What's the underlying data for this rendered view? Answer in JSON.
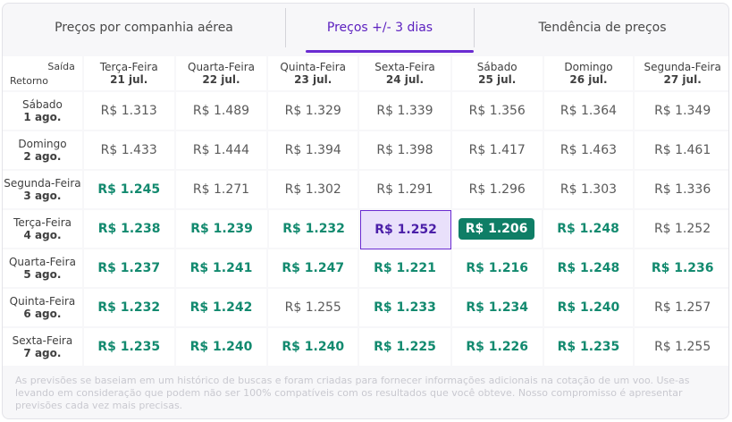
{
  "tabs": [
    {
      "label": "Preços por companhia aérea",
      "active": false
    },
    {
      "label": "Preços +/- 3 dias",
      "active": true
    },
    {
      "label": "Tendência de preços",
      "active": false
    }
  ],
  "corner": {
    "departure_label": "Saída",
    "return_label": "Retorno"
  },
  "columns": [
    {
      "day": "Terça-Feira",
      "date": "21 jul."
    },
    {
      "day": "Quarta-Feira",
      "date": "22 jul."
    },
    {
      "day": "Quinta-Feira",
      "date": "23 jul."
    },
    {
      "day": "Sexta-Feira",
      "date": "24 jul."
    },
    {
      "day": "Sábado",
      "date": "25 jul."
    },
    {
      "day": "Domingo",
      "date": "26 jul."
    },
    {
      "day": "Segunda-Feira",
      "date": "27 jul."
    }
  ],
  "rows": [
    {
      "day": "Sábado",
      "date": "1 ago.",
      "prices": [
        {
          "v": "R$ 1.313",
          "s": "normal"
        },
        {
          "v": "R$ 1.489",
          "s": "normal"
        },
        {
          "v": "R$ 1.329",
          "s": "normal"
        },
        {
          "v": "R$ 1.339",
          "s": "normal"
        },
        {
          "v": "R$ 1.356",
          "s": "normal"
        },
        {
          "v": "R$ 1.364",
          "s": "normal"
        },
        {
          "v": "R$ 1.349",
          "s": "normal"
        }
      ]
    },
    {
      "day": "Domingo",
      "date": "2 ago.",
      "prices": [
        {
          "v": "R$ 1.433",
          "s": "normal"
        },
        {
          "v": "R$ 1.444",
          "s": "normal"
        },
        {
          "v": "R$ 1.394",
          "s": "normal"
        },
        {
          "v": "R$ 1.398",
          "s": "normal"
        },
        {
          "v": "R$ 1.417",
          "s": "normal"
        },
        {
          "v": "R$ 1.463",
          "s": "normal"
        },
        {
          "v": "R$ 1.461",
          "s": "normal"
        }
      ]
    },
    {
      "day": "Segunda-Feira",
      "date": "3 ago.",
      "prices": [
        {
          "v": "R$ 1.245",
          "s": "low"
        },
        {
          "v": "R$ 1.271",
          "s": "normal"
        },
        {
          "v": "R$ 1.302",
          "s": "normal"
        },
        {
          "v": "R$ 1.291",
          "s": "normal"
        },
        {
          "v": "R$ 1.296",
          "s": "normal"
        },
        {
          "v": "R$ 1.303",
          "s": "normal"
        },
        {
          "v": "R$ 1.336",
          "s": "normal"
        }
      ]
    },
    {
      "day": "Terça-Feira",
      "date": "4 ago.",
      "prices": [
        {
          "v": "R$ 1.238",
          "s": "low"
        },
        {
          "v": "R$ 1.239",
          "s": "low"
        },
        {
          "v": "R$ 1.232",
          "s": "low"
        },
        {
          "v": "R$ 1.252",
          "s": "selected"
        },
        {
          "v": "R$ 1.206",
          "s": "cheapest"
        },
        {
          "v": "R$ 1.248",
          "s": "low"
        },
        {
          "v": "R$ 1.252",
          "s": "normal"
        }
      ]
    },
    {
      "day": "Quarta-Feira",
      "date": "5 ago.",
      "prices": [
        {
          "v": "R$ 1.237",
          "s": "low"
        },
        {
          "v": "R$ 1.241",
          "s": "low"
        },
        {
          "v": "R$ 1.247",
          "s": "low"
        },
        {
          "v": "R$ 1.221",
          "s": "low"
        },
        {
          "v": "R$ 1.216",
          "s": "low"
        },
        {
          "v": "R$ 1.248",
          "s": "low"
        },
        {
          "v": "R$ 1.236",
          "s": "low"
        }
      ]
    },
    {
      "day": "Quinta-Feira",
      "date": "6 ago.",
      "prices": [
        {
          "v": "R$ 1.232",
          "s": "low"
        },
        {
          "v": "R$ 1.242",
          "s": "low"
        },
        {
          "v": "R$ 1.255",
          "s": "normal"
        },
        {
          "v": "R$ 1.233",
          "s": "low"
        },
        {
          "v": "R$ 1.234",
          "s": "low"
        },
        {
          "v": "R$ 1.240",
          "s": "low"
        },
        {
          "v": "R$ 1.257",
          "s": "normal"
        }
      ]
    },
    {
      "day": "Sexta-Feira",
      "date": "7 ago.",
      "prices": [
        {
          "v": "R$ 1.235",
          "s": "low"
        },
        {
          "v": "R$ 1.240",
          "s": "low"
        },
        {
          "v": "R$ 1.240",
          "s": "low"
        },
        {
          "v": "R$ 1.225",
          "s": "low"
        },
        {
          "v": "R$ 1.226",
          "s": "low"
        },
        {
          "v": "R$ 1.235",
          "s": "low"
        },
        {
          "v": "R$ 1.255",
          "s": "normal"
        }
      ]
    }
  ],
  "footnote": "As previsões se baseiam em um histórico de buscas e foram criadas para fornecer informações adicionais na cotação de um voo. Use-as levando em consideração que podem não ser 100% compatíveis com os resultados que você obteve. Nosso compromisso é apresentar previsões cada vez mais precisas.",
  "colors": {
    "accent": "#6a2bd1",
    "low_price": "#138a6f",
    "cheapest_bg": "#0f7e66",
    "selected_bg": "#e9e0fb"
  }
}
